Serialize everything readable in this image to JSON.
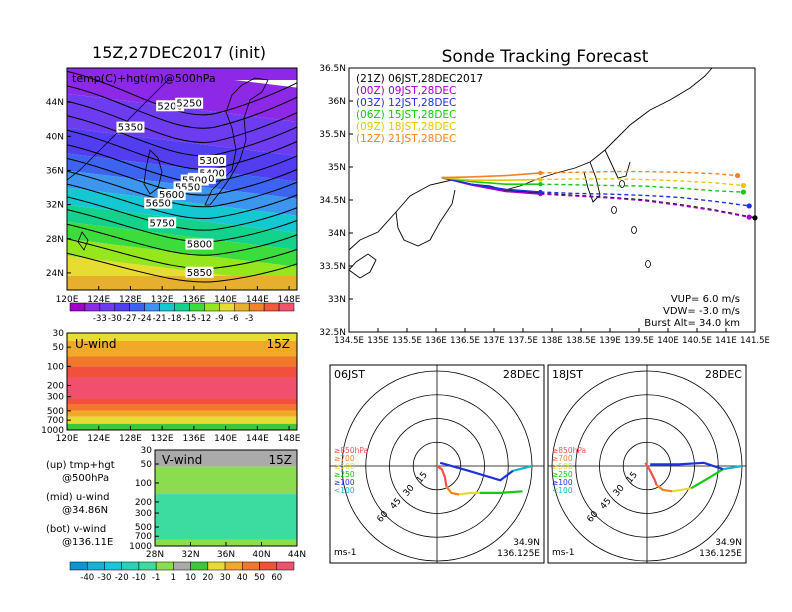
{
  "chart_data": [
    {
      "id": "z500",
      "type": "heatmap",
      "title": "15Z,27DEC2017 (init)",
      "inner_title": "temp(C)+hgt(m)@500hPa",
      "x_ticks": [
        "120E",
        "124E",
        "128E",
        "132E",
        "136E",
        "140E",
        "144E",
        "148E"
      ],
      "y_ticks": [
        "24N",
        "28N",
        "32N",
        "36N",
        "40N",
        "44N"
      ],
      "xlim": [
        120,
        149
      ],
      "ylim": [
        22,
        48
      ],
      "temp_colorbar": {
        "labels": [
          "-33",
          "-30",
          "-27",
          "-24",
          "-21",
          "-18",
          "-15",
          "-12",
          "-9",
          "-6",
          "-3"
        ],
        "colors": [
          "#a000c8",
          "#8c28e6",
          "#6e3cf0",
          "#503ef0",
          "#3c64f0",
          "#3c96f0",
          "#14c8d2",
          "#14d28c",
          "#3cdc3c",
          "#96e61e",
          "#e6dc32",
          "#e6af2d",
          "#f08228",
          "#f05a3c",
          "#f0546e"
        ]
      },
      "height_contour_labels": [
        {
          "label": "5200",
          "lon": 133.0,
          "lat": 43.4
        },
        {
          "label": "5250",
          "lon": 135.4,
          "lat": 43.7
        },
        {
          "label": "5300",
          "lon": 138.3,
          "lat": 37.0
        },
        {
          "label": "5350",
          "lon": 128.0,
          "lat": 40.9
        },
        {
          "label": "5400",
          "lon": 138.3,
          "lat": 35.5
        },
        {
          "label": "5450",
          "lon": 137.0,
          "lat": 34.9
        },
        {
          "label": "5500",
          "lon": 136.1,
          "lat": 34.7
        },
        {
          "label": "5550",
          "lon": 135.2,
          "lat": 33.9
        },
        {
          "label": "5600",
          "lon": 133.2,
          "lat": 33.0
        },
        {
          "label": "5650",
          "lon": 131.5,
          "lat": 32.0
        },
        {
          "label": "5750",
          "lon": 132.0,
          "lat": 29.7
        },
        {
          "label": "5800",
          "lon": 136.7,
          "lat": 27.2
        },
        {
          "label": "5850",
          "lon": 136.7,
          "lat": 23.9
        }
      ],
      "temp_bands_by_lat": [
        {
          "lat": 48,
          "temp": -33
        },
        {
          "lat": 44,
          "temp": -30
        },
        {
          "lat": 40,
          "temp": -27
        },
        {
          "lat": 37,
          "temp": -24
        },
        {
          "lat": 35,
          "temp": -21
        },
        {
          "lat": 33,
          "temp": -18
        },
        {
          "lat": 31,
          "temp": -15
        },
        {
          "lat": 29,
          "temp": -12
        },
        {
          "lat": 27,
          "temp": -9
        },
        {
          "lat": 25,
          "temp": -6
        },
        {
          "lat": 22,
          "temp": -3
        }
      ]
    },
    {
      "id": "uwind",
      "type": "heatmap",
      "label": "U-wind",
      "time": "15Z",
      "x_ticks": [
        "120E",
        "124E",
        "128E",
        "132E",
        "136E",
        "140E",
        "144E",
        "148E"
      ],
      "y_ticks": [
        "30",
        "50",
        "100",
        "200",
        "300",
        "500",
        "700",
        "1000"
      ],
      "ylim_hpa": [
        30,
        1000
      ],
      "layers_hpa": [
        {
          "top": 30,
          "bottom": 40,
          "value": 20
        },
        {
          "top": 40,
          "bottom": 70,
          "value": 30
        },
        {
          "top": 70,
          "bottom": 100,
          "value": 40
        },
        {
          "top": 100,
          "bottom": 150,
          "value": 50
        },
        {
          "top": 150,
          "bottom": 320,
          "value": 60
        },
        {
          "top": 320,
          "bottom": 400,
          "value": 50
        },
        {
          "top": 400,
          "bottom": 500,
          "value": 40
        },
        {
          "top": 500,
          "bottom": 620,
          "value": 30
        },
        {
          "top": 620,
          "bottom": 800,
          "value": 20
        },
        {
          "top": 800,
          "bottom": 1000,
          "value": 10
        }
      ]
    },
    {
      "id": "vwind",
      "type": "heatmap",
      "label": "V-wind",
      "time": "15Z",
      "x_ticks": [
        "28N",
        "32N",
        "36N",
        "40N",
        "44N"
      ],
      "y_ticks": [
        "30",
        "50",
        "100",
        "200",
        "300",
        "500",
        "700",
        "1000"
      ],
      "ylim_hpa": [
        30,
        1000
      ],
      "layers_hpa": [
        {
          "top": 30,
          "bottom": 55,
          "value": 1
        },
        {
          "top": 55,
          "bottom": 150,
          "value": -1
        },
        {
          "top": 150,
          "bottom": 800,
          "value": -10
        },
        {
          "top": 800,
          "bottom": 1000,
          "value": -1
        }
      ],
      "wind_colorbar": {
        "labels": [
          "-40",
          "-30",
          "-20",
          "-10",
          "-1",
          "1",
          "10",
          "20",
          "30",
          "40",
          "50",
          "60"
        ],
        "colors": [
          "#0a96d2",
          "#14b4d2",
          "#14c8dc",
          "#28d2b4",
          "#3cdca0",
          "#8cdc50",
          "#aaaaaa",
          "#3cc83c",
          "#e6dc32",
          "#f0aa28",
          "#f07828",
          "#f0503c",
          "#f0506e"
        ]
      }
    },
    {
      "id": "track",
      "type": "line",
      "title": "Sonde Tracking Forecast",
      "x_ticks": [
        "134.5E",
        "135E",
        "135.5E",
        "136E",
        "136.5E",
        "137E",
        "137.5E",
        "138E",
        "138.5E",
        "139E",
        "139.5E",
        "140E",
        "140.5E",
        "141E",
        "141.5E"
      ],
      "y_ticks": [
        "32.5N",
        "33N",
        "33.5N",
        "34N",
        "34.5N",
        "35N",
        "35.5N",
        "36N",
        "36.5N"
      ],
      "xlim": [
        134.5,
        141.5
      ],
      "ylim": [
        32.5,
        36.5
      ],
      "legend_position": "top-left",
      "series": [
        {
          "name": "(21Z)  06JST,28DEC2017",
          "color": "#000000",
          "lon": [
            136.1,
            136.6,
            137.2,
            137.8,
            138.4,
            139.0,
            139.6,
            140.2,
            140.8,
            141.5
          ],
          "lat": [
            34.84,
            34.74,
            34.64,
            34.6,
            34.57,
            34.54,
            34.5,
            34.43,
            34.35,
            34.23
          ]
        },
        {
          "name": "(00Z)  09JST,28DEC",
          "color": "#a000c8",
          "lon": [
            136.1,
            136.6,
            137.2,
            137.8,
            138.4,
            139.0,
            139.6,
            140.2,
            140.8,
            141.4
          ],
          "lat": [
            34.84,
            34.73,
            34.63,
            34.59,
            34.56,
            34.53,
            34.49,
            34.42,
            34.34,
            34.24
          ]
        },
        {
          "name": "(03Z)  12JST,28DEC",
          "color": "#1e32dc",
          "lon": [
            136.1,
            136.6,
            137.2,
            137.8,
            138.4,
            139.0,
            139.6,
            140.2,
            140.8,
            141.4
          ],
          "lat": [
            34.84,
            34.74,
            34.66,
            34.62,
            34.6,
            34.59,
            34.57,
            34.54,
            34.48,
            34.41
          ]
        },
        {
          "name": "(06Z)  15JST,28DEC",
          "color": "#14c814",
          "lon": [
            136.1,
            136.6,
            137.2,
            137.8,
            138.4,
            139.0,
            139.6,
            140.2,
            140.8,
            141.3
          ],
          "lat": [
            34.84,
            34.78,
            34.74,
            34.74,
            34.73,
            34.72,
            34.71,
            34.68,
            34.64,
            34.62
          ]
        },
        {
          "name": "(09Z)  18JST,28DEC",
          "color": "#e6c800",
          "lon": [
            136.1,
            136.6,
            137.2,
            137.8,
            138.4,
            139.0,
            139.6,
            140.2,
            140.8,
            141.3
          ],
          "lat": [
            34.84,
            34.8,
            34.8,
            34.81,
            34.82,
            34.82,
            34.81,
            34.79,
            34.76,
            34.72
          ]
        },
        {
          "name": "(12Z)  21JST,28DEC",
          "color": "#f08228",
          "lon": [
            136.1,
            136.6,
            137.2,
            137.8,
            138.4,
            139.0,
            139.6,
            140.2,
            140.8,
            141.2
          ],
          "lat": [
            34.84,
            34.85,
            34.87,
            34.91,
            34.92,
            34.93,
            34.93,
            34.92,
            34.9,
            34.87
          ]
        }
      ],
      "params": [
        "VUP=  6.0  m/s",
        "VDW= -3.0  m/s",
        "Burst Alt=  34.0  km"
      ]
    },
    {
      "id": "hodo06",
      "type": "line",
      "left_label": "06JST",
      "right_label": "28DEC",
      "unit_label": "ms-1",
      "position_labels": [
        "34.9N",
        "136.125E"
      ],
      "ring_labels": [
        "15",
        "30",
        "45",
        "60"
      ],
      "level_legend": [
        {
          "label": "≥850hPa",
          "color": "#f05050"
        },
        {
          "label": "≥700",
          "color": "#f08228"
        },
        {
          "label": "≥500",
          "color": "#e6dc32"
        },
        {
          "label": "≥250",
          "color": "#14c814"
        },
        {
          "label": "≥100",
          "color": "#1e32dc"
        },
        {
          "label": "<100",
          "color": "#14b4d2"
        }
      ],
      "segments": [
        {
          "color": "#f05050",
          "u": [
            0,
            3,
            5,
            6
          ],
          "v": [
            0,
            -2,
            -7,
            -13
          ]
        },
        {
          "color": "#f08228",
          "u": [
            6,
            9,
            14
          ],
          "v": [
            -13,
            -17,
            -18
          ]
        },
        {
          "color": "#e6dc32",
          "u": [
            14,
            21,
            27
          ],
          "v": [
            -18,
            -17,
            -17
          ]
        },
        {
          "color": "#14c814",
          "u": [
            27,
            40,
            54
          ],
          "v": [
            -17,
            -17,
            -16
          ]
        },
        {
          "color": "#1e32dc",
          "u": [
            2,
            20,
            40,
            48
          ],
          "v": [
            2,
            -3,
            -9,
            -3
          ]
        },
        {
          "color": "#14b4d2",
          "u": [
            48,
            60
          ],
          "v": [
            -3,
            0
          ]
        }
      ]
    },
    {
      "id": "hodo18",
      "type": "line",
      "left_label": "18JST",
      "right_label": "28DEC",
      "unit_label": "ms-1",
      "position_labels": [
        "34.9N",
        "136.125E"
      ],
      "ring_labels": [
        "15",
        "30",
        "45",
        "60"
      ],
      "level_legend": [
        {
          "label": "≥850hPa",
          "color": "#f05050"
        },
        {
          "label": "≥700",
          "color": "#f08228"
        },
        {
          "label": "≥500",
          "color": "#e6dc32"
        },
        {
          "label": "≥250",
          "color": "#14c814"
        },
        {
          "label": "≥100",
          "color": "#1e32dc"
        },
        {
          "label": "<100",
          "color": "#14b4d2"
        }
      ],
      "segments": [
        {
          "color": "#f05050",
          "u": [
            -1,
            2,
            5,
            6
          ],
          "v": [
            2,
            -3,
            -9,
            -12
          ]
        },
        {
          "color": "#f08228",
          "u": [
            6,
            10,
            16
          ],
          "v": [
            -12,
            -15,
            -16
          ]
        },
        {
          "color": "#e6dc32",
          "u": [
            16,
            22,
            28
          ],
          "v": [
            -16,
            -15,
            -14
          ]
        },
        {
          "color": "#14c814",
          "u": [
            28,
            40,
            48
          ],
          "v": [
            -14,
            -7,
            -2
          ]
        },
        {
          "color": "#1e32dc",
          "u": [
            2,
            20,
            36,
            48
          ],
          "v": [
            1,
            1,
            2,
            -2
          ]
        },
        {
          "color": "#14b4d2",
          "u": [
            48,
            60
          ],
          "v": [
            -2,
            0
          ]
        }
      ]
    }
  ],
  "side_notes": [
    "(up) tmp+hgt",
    "@500hPa",
    "(mid) u-wind",
    "@34.86N",
    "(bot) v-wind",
    "@136.11E"
  ]
}
